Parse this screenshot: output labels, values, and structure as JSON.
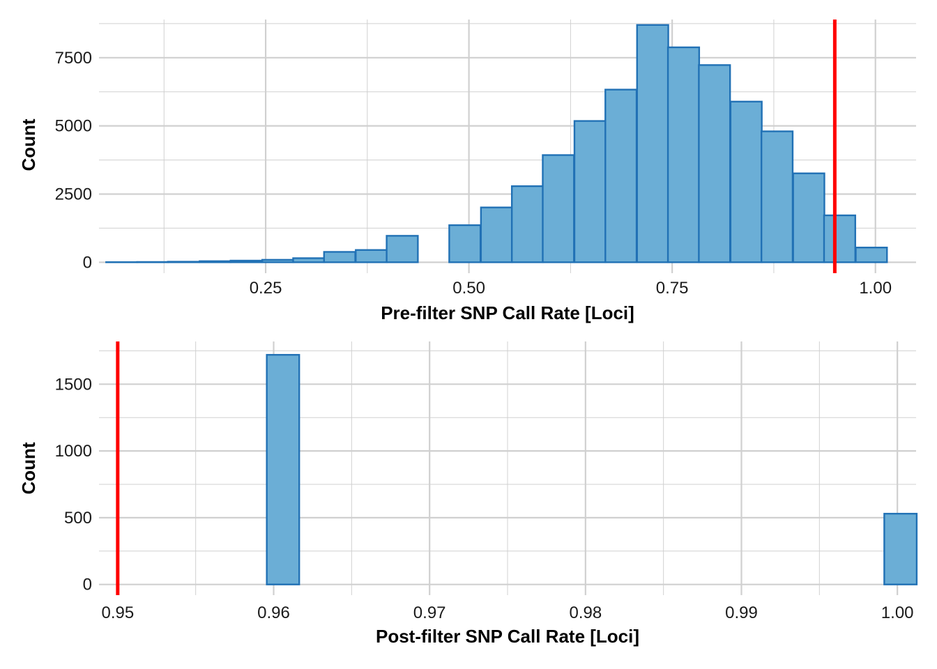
{
  "chart_data": [
    {
      "type": "bar",
      "title": "",
      "xlabel": "Pre-filter SNP Call Rate [Loci]",
      "ylabel": "Count",
      "xlim": [
        0.045,
        1.05
      ],
      "ylim": [
        -400,
        8900
      ],
      "xticks": [
        0.25,
        0.5,
        0.75,
        1.0
      ],
      "xtick_labels": [
        "0.25",
        "0.50",
        "0.75",
        "1.00"
      ],
      "xminor": [
        0.125,
        0.375,
        0.625,
        0.875
      ],
      "yticks": [
        0,
        2500,
        5000,
        7500
      ],
      "ytick_labels": [
        "0",
        "2500",
        "5000",
        "7500"
      ],
      "yminor": [
        1250,
        3750,
        6250,
        8750
      ],
      "bin_width": 0.0384,
      "bin_centers": [
        0.073,
        0.111,
        0.149,
        0.188,
        0.226,
        0.265,
        0.303,
        0.341,
        0.38,
        0.418,
        0.457,
        0.495,
        0.534,
        0.572,
        0.61,
        0.649,
        0.687,
        0.726,
        0.764,
        0.802,
        0.841,
        0.879,
        0.918,
        0.956,
        0.995
      ],
      "values": [
        5,
        10,
        20,
        40,
        60,
        90,
        150,
        380,
        450,
        970,
        0,
        1360,
        2010,
        2790,
        3930,
        5180,
        6330,
        8700,
        7880,
        7230,
        5890,
        4800,
        3260,
        1720,
        540
      ],
      "threshold": 0.95,
      "grid": true,
      "legend": "none",
      "colors": {
        "bar_fill": "#6baed6",
        "bar_stroke": "#2171b5",
        "threshold": "#ff0000",
        "grid": "#d0d0d0"
      }
    },
    {
      "type": "bar",
      "title": "",
      "xlabel": "Post-filter SNP Call Rate [Loci]",
      "ylabel": "Count",
      "xlim": [
        0.9488,
        1.0012
      ],
      "ylim": [
        -80,
        1820
      ],
      "xticks": [
        0.95,
        0.96,
        0.97,
        0.98,
        0.99,
        1.0
      ],
      "xtick_labels": [
        "0.95",
        "0.96",
        "0.97",
        "0.98",
        "0.99",
        "1.00"
      ],
      "xminor": [
        0.955,
        0.965,
        0.975,
        0.985,
        0.995
      ],
      "yticks": [
        0,
        500,
        1000,
        1500
      ],
      "ytick_labels": [
        "0",
        "500",
        "1000",
        "1500"
      ],
      "yminor": [
        250,
        750,
        1250,
        1750
      ],
      "bin_width": 0.00208,
      "bin_centers": [
        0.9502,
        0.9523,
        0.9544,
        0.9565,
        0.9585,
        0.9606,
        0.9627,
        0.9648,
        0.9669,
        0.969,
        0.971,
        0.9731,
        0.9752,
        0.9773,
        0.9794,
        0.9815,
        0.9835,
        0.9856,
        0.9877,
        0.9898,
        0.9919,
        0.994,
        0.996,
        0.9981,
        1.0002
      ],
      "values": [
        0,
        0,
        0,
        0,
        0,
        1720,
        0,
        0,
        0,
        0,
        0,
        0,
        0,
        0,
        0,
        0,
        0,
        0,
        0,
        0,
        0,
        0,
        0,
        0,
        530
      ],
      "threshold": 0.95,
      "grid": true,
      "legend": "none",
      "colors": {
        "bar_fill": "#6baed6",
        "bar_stroke": "#2171b5",
        "threshold": "#ff0000",
        "grid": "#d0d0d0"
      }
    }
  ]
}
